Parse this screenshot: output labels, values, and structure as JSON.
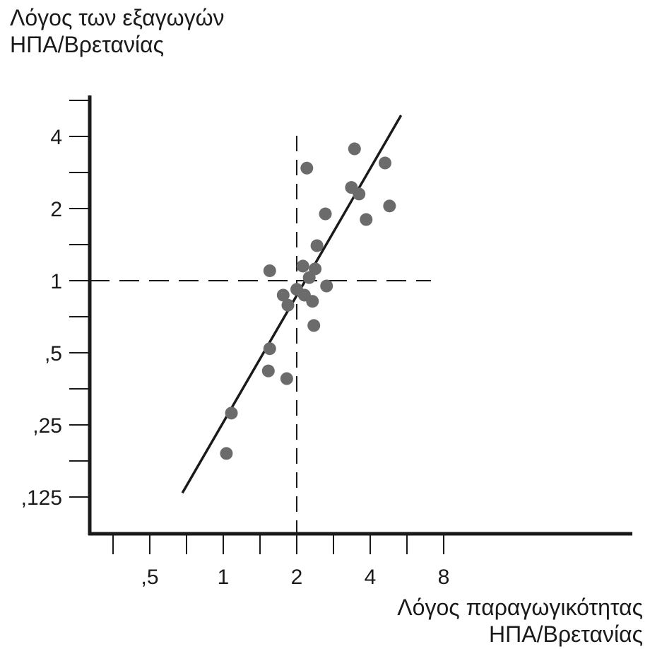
{
  "chart_data": {
    "type": "scatter",
    "title": "",
    "ylabel_lines": [
      "Λόγος των εξαγωγών",
      "ΗΠΑ/Βρετανίας"
    ],
    "xlabel_lines": [
      "Λόγος παραγωγικότητας",
      "ΗΠΑ/Βρετανίας"
    ],
    "x_scale": "log2",
    "y_scale": "log2",
    "xlim": [
      0.354,
      8
    ],
    "ylim": [
      0.104,
      5.1
    ],
    "x_ticks": [
      0.5,
      1,
      2,
      4,
      8
    ],
    "x_tick_labels": [
      ",5",
      "1",
      "2",
      "4",
      "8"
    ],
    "y_ticks": [
      0.125,
      0.25,
      0.5,
      1,
      2,
      4
    ],
    "y_tick_labels": [
      ",125",
      ",25",
      ",5",
      "1",
      "2",
      "4"
    ],
    "reference_lines": {
      "x": 2.0,
      "y": 1.0,
      "style": "dashed"
    },
    "trend_line": {
      "x": [
        0.68,
        5.35
      ],
      "y": [
        0.13,
        4.9
      ]
    },
    "points": [
      {
        "x": 1.03,
        "y": 0.19
      },
      {
        "x": 1.08,
        "y": 0.28
      },
      {
        "x": 1.53,
        "y": 0.42
      },
      {
        "x": 1.55,
        "y": 0.52
      },
      {
        "x": 1.82,
        "y": 0.39
      },
      {
        "x": 1.55,
        "y": 1.1
      },
      {
        "x": 1.76,
        "y": 0.87
      },
      {
        "x": 1.84,
        "y": 0.79
      },
      {
        "x": 2.0,
        "y": 0.92
      },
      {
        "x": 2.15,
        "y": 0.87
      },
      {
        "x": 2.25,
        "y": 1.03
      },
      {
        "x": 2.32,
        "y": 0.82
      },
      {
        "x": 2.35,
        "y": 0.65
      },
      {
        "x": 2.38,
        "y": 1.12
      },
      {
        "x": 2.42,
        "y": 1.4
      },
      {
        "x": 2.12,
        "y": 1.15
      },
      {
        "x": 2.65,
        "y": 0.95
      },
      {
        "x": 2.62,
        "y": 1.9
      },
      {
        "x": 2.2,
        "y": 2.95
      },
      {
        "x": 3.35,
        "y": 2.45
      },
      {
        "x": 3.6,
        "y": 2.3
      },
      {
        "x": 3.45,
        "y": 3.55
      },
      {
        "x": 3.85,
        "y": 1.8
      },
      {
        "x": 4.6,
        "y": 3.1
      },
      {
        "x": 4.8,
        "y": 2.05
      }
    ],
    "grid": false,
    "marker_color": "#6b6b6b",
    "line_color": "#1a1a1a"
  }
}
